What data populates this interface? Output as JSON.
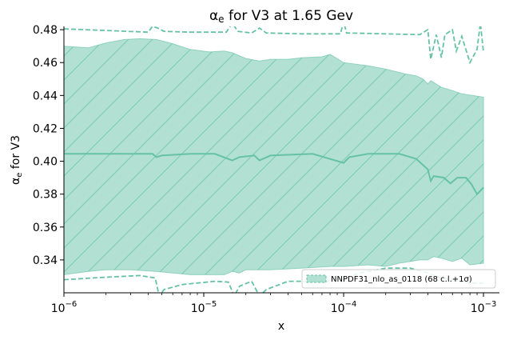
{
  "chart_data": {
    "type": "line",
    "title": "αe for V3 at 1.65 Gev",
    "xlabel": "x",
    "ylabel": "αe for V3",
    "x_scale": "log",
    "xlim": [
      1e-06,
      0.0013
    ],
    "ylim": [
      0.32,
      0.482
    ],
    "x_ticks": [
      {
        "value": 1e-06,
        "label": "10−6"
      },
      {
        "value": 1e-05,
        "label": "10−5"
      },
      {
        "value": 0.0001,
        "label": "10−4"
      },
      {
        "value": 0.001,
        "label": "10−3"
      }
    ],
    "y_ticks": [
      0.34,
      0.36,
      0.38,
      0.4,
      0.42,
      0.44,
      0.46,
      0.48
    ],
    "y_tick_labels": [
      "0.34",
      "0.36",
      "0.38",
      "0.40",
      "0.42",
      "0.44",
      "0.46",
      "0.48"
    ],
    "color": "#66c2a5",
    "series": [
      {
        "name": "NNPDF31_nlo_as_0118 (68 c.l.+1σ)",
        "band_upper": [
          [
            1e-06,
            0.47
          ],
          [
            1.5e-06,
            0.469
          ],
          [
            2e-06,
            0.472
          ],
          [
            2.7e-06,
            0.474
          ],
          [
            3.5e-06,
            0.4745
          ],
          [
            4.6e-06,
            0.474
          ],
          [
            6e-06,
            0.4715
          ],
          [
            8e-06,
            0.468
          ],
          [
            1.1e-05,
            0.4665
          ],
          [
            1.4e-05,
            0.467
          ],
          [
            1.6e-05,
            0.466
          ],
          [
            2e-05,
            0.4625
          ],
          [
            2.5e-05,
            0.461
          ],
          [
            3e-05,
            0.462
          ],
          [
            4e-05,
            0.462
          ],
          [
            5e-05,
            0.463
          ],
          [
            7e-05,
            0.4635
          ],
          [
            8e-05,
            0.465
          ],
          [
            0.0001,
            0.46
          ],
          [
            0.00015,
            0.458
          ],
          [
            0.0002,
            0.456
          ],
          [
            0.00028,
            0.453
          ],
          [
            0.00033,
            0.452
          ],
          [
            0.00037,
            0.45
          ],
          [
            0.0004,
            0.447
          ],
          [
            0.00042,
            0.449
          ],
          [
            0.0005,
            0.445
          ],
          [
            0.0006,
            0.443
          ],
          [
            0.0007,
            0.441
          ],
          [
            0.001,
            0.439
          ]
        ],
        "band_lower": [
          [
            1e-06,
            0.331
          ],
          [
            1.5e-06,
            0.333
          ],
          [
            2e-06,
            0.334
          ],
          [
            3e-06,
            0.334
          ],
          [
            4.5e-06,
            0.333
          ],
          [
            6e-06,
            0.332
          ],
          [
            8e-06,
            0.331
          ],
          [
            1e-05,
            0.331
          ],
          [
            1.4e-05,
            0.331
          ],
          [
            1.6e-05,
            0.333
          ],
          [
            1.8e-05,
            0.332
          ],
          [
            2e-05,
            0.334
          ],
          [
            3e-05,
            0.334
          ],
          [
            5e-05,
            0.335
          ],
          [
            8e-05,
            0.336
          ],
          [
            0.0001,
            0.336
          ],
          [
            0.00015,
            0.337
          ],
          [
            0.0002,
            0.336
          ],
          [
            0.00025,
            0.338
          ],
          [
            0.0003,
            0.339
          ],
          [
            0.00035,
            0.34
          ],
          [
            0.0004,
            0.34
          ],
          [
            0.00044,
            0.342
          ],
          [
            0.0005,
            0.341
          ],
          [
            0.0006,
            0.339
          ],
          [
            0.0007,
            0.341
          ],
          [
            0.0008,
            0.337
          ],
          [
            0.001,
            0.338
          ]
        ],
        "central": [
          [
            1e-06,
            0.4045
          ],
          [
            2e-06,
            0.4045
          ],
          [
            4.3e-06,
            0.4045
          ],
          [
            4.6e-06,
            0.4025
          ],
          [
            5e-06,
            0.4035
          ],
          [
            8e-06,
            0.4045
          ],
          [
            1.2e-05,
            0.4045
          ],
          [
            1.6e-05,
            0.4005
          ],
          [
            1.8e-05,
            0.4025
          ],
          [
            2.3e-05,
            0.4035
          ],
          [
            2.5e-05,
            0.4005
          ],
          [
            3e-05,
            0.4035
          ],
          [
            6e-05,
            0.4045
          ],
          [
            0.0001,
            0.399
          ],
          [
            0.00011,
            0.4025
          ],
          [
            0.00015,
            0.4045
          ],
          [
            0.00025,
            0.4045
          ],
          [
            0.00033,
            0.4015
          ],
          [
            0.0004,
            0.395
          ],
          [
            0.00042,
            0.388
          ],
          [
            0.00044,
            0.391
          ],
          [
            0.00052,
            0.39
          ],
          [
            0.00058,
            0.3865
          ],
          [
            0.00065,
            0.39
          ],
          [
            0.00075,
            0.39
          ],
          [
            0.00082,
            0.386
          ],
          [
            0.0009,
            0.38
          ],
          [
            0.001,
            0.384
          ]
        ],
        "upper_dashed": [
          [
            1e-06,
            0.4805
          ],
          [
            2e-06,
            0.4795
          ],
          [
            4e-06,
            0.4785
          ],
          [
            4.3e-06,
            0.482
          ],
          [
            4.7e-06,
            0.481
          ],
          [
            5.2e-06,
            0.479
          ],
          [
            8e-06,
            0.4785
          ],
          [
            1.45e-05,
            0.4785
          ],
          [
            1.6e-05,
            0.484
          ],
          [
            1.75e-05,
            0.479
          ],
          [
            2.2e-05,
            0.478
          ],
          [
            2.5e-05,
            0.481
          ],
          [
            2.8e-05,
            0.478
          ],
          [
            5e-05,
            0.4775
          ],
          [
            9.5e-05,
            0.4775
          ],
          [
            0.0001,
            0.485
          ],
          [
            0.000105,
            0.478
          ],
          [
            0.0002,
            0.4775
          ],
          [
            0.00035,
            0.477
          ],
          [
            0.0004,
            0.48
          ],
          [
            0.00042,
            0.462
          ],
          [
            0.00046,
            0.477
          ],
          [
            0.0005,
            0.463
          ],
          [
            0.00053,
            0.477
          ],
          [
            0.0006,
            0.48
          ],
          [
            0.00064,
            0.467
          ],
          [
            0.0007,
            0.476
          ],
          [
            0.0008,
            0.46
          ],
          [
            0.0009,
            0.468
          ],
          [
            0.00095,
            0.484
          ],
          [
            0.001,
            0.466
          ]
        ],
        "lower_dashed": [
          [
            1e-06,
            0.328
          ],
          [
            2e-06,
            0.3295
          ],
          [
            3.5e-06,
            0.3305
          ],
          [
            4.5e-06,
            0.329
          ],
          [
            4.8e-06,
            0.318
          ],
          [
            5.2e-06,
            0.322
          ],
          [
            7e-06,
            0.325
          ],
          [
            1.2e-05,
            0.327
          ],
          [
            1.5e-05,
            0.3265
          ],
          [
            1.65e-05,
            0.318
          ],
          [
            1.8e-05,
            0.324
          ],
          [
            2.2e-05,
            0.327
          ],
          [
            2.5e-05,
            0.318
          ],
          [
            2.8e-05,
            0.322
          ],
          [
            4e-05,
            0.327
          ],
          [
            8e-05,
            0.327
          ],
          [
            0.0001,
            0.3285
          ],
          [
            0.00013,
            0.332
          ],
          [
            0.0002,
            0.335
          ],
          [
            0.0003,
            0.335
          ],
          [
            0.0004,
            0.332
          ],
          [
            0.0005,
            0.329
          ],
          [
            0.0006,
            0.328
          ],
          [
            0.0008,
            0.326
          ],
          [
            0.001,
            0.326
          ]
        ]
      }
    ],
    "legend": {
      "position": "lower right",
      "label": "NNPDF31_nlo_as_0118 (68 c.l.+1σ)"
    },
    "grid": false
  }
}
